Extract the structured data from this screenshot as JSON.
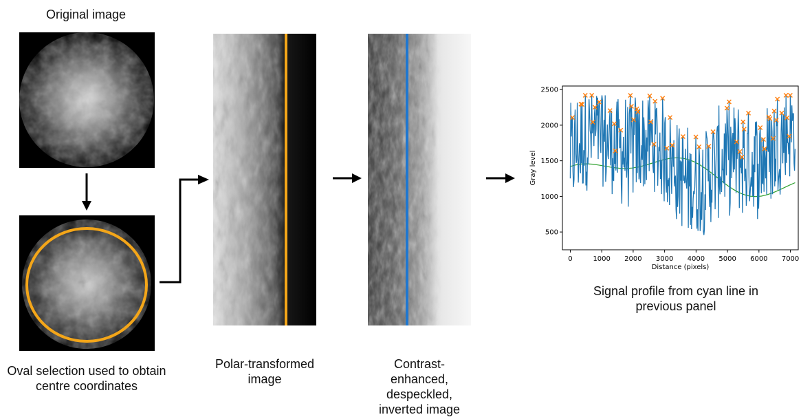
{
  "captions": {
    "original": "Original image",
    "oval": "Oval selection used to obtain centre coordinates",
    "polar": "Polar-transformed image",
    "contrast": "Contrast-enhanced, despeckled, inverted image",
    "profile": "Signal profile from cyan line in previous panel"
  },
  "colors": {
    "oval_ring": "#f4a619",
    "polar_line": "#f4a619",
    "profile_line": "#1f77d0",
    "series": "#1f77b4",
    "peaks": "#ff7f0e",
    "baseline": "#2ca02c"
  },
  "chart_data": {
    "type": "line",
    "xlabel": "Distance (pixels)",
    "ylabel": "Gray level",
    "xlim": [
      -250,
      7250
    ],
    "ylim": [
      250,
      2550
    ],
    "xticks": [
      0,
      1000,
      2000,
      3000,
      4000,
      5000,
      6000,
      7000
    ],
    "yticks": [
      500,
      1000,
      1500,
      2000,
      2500
    ],
    "grid": false,
    "series_points": 420,
    "x_max": 7150,
    "peaks_marker": "x"
  }
}
